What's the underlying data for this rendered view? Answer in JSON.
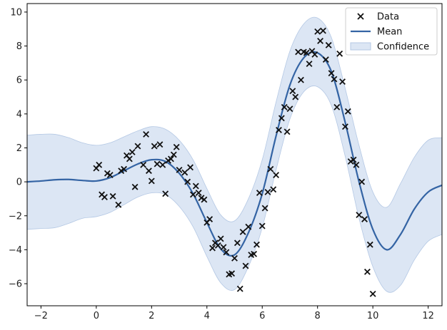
{
  "chart_data": {
    "type": "scatter",
    "title": "",
    "xlabel": "",
    "ylabel": "",
    "xlim": [
      -2.5,
      12.5
    ],
    "ylim": [
      -7.3,
      10.5
    ],
    "xticks": [
      -2,
      0,
      2,
      4,
      6,
      8,
      10,
      12
    ],
    "yticks": [
      -6,
      -4,
      -2,
      0,
      2,
      4,
      6,
      8,
      10
    ],
    "grid": false,
    "legend": {
      "position": "top-right",
      "entries": [
        "Data",
        "Mean",
        "Confidence"
      ]
    },
    "colors": {
      "data": "#111111",
      "mean": "#3464a4",
      "confidence": "#dce6f4",
      "confidence_edge": "#b4c8e4"
    },
    "series": [
      {
        "name": "Data",
        "type": "scatter",
        "marker": "x",
        "x": [
          0.0,
          0.1,
          0.2,
          0.3,
          0.4,
          0.5,
          0.6,
          0.8,
          0.9,
          1.0,
          1.1,
          1.2,
          1.3,
          1.4,
          1.5,
          1.7,
          1.8,
          1.9,
          2.0,
          2.1,
          2.2,
          2.3,
          2.4,
          2.5,
          2.6,
          2.7,
          2.8,
          2.9,
          3.0,
          3.2,
          3.3,
          3.4,
          3.5,
          3.6,
          3.7,
          3.8,
          3.9,
          4.0,
          4.1,
          4.2,
          4.3,
          4.4,
          4.5,
          4.6,
          4.7,
          4.8,
          4.9,
          5.0,
          5.1,
          5.2,
          5.3,
          5.4,
          5.5,
          5.6,
          5.7,
          5.8,
          5.9,
          6.0,
          6.1,
          6.2,
          6.3,
          6.4,
          6.5,
          6.6,
          6.7,
          6.8,
          6.9,
          7.0,
          7.1,
          7.2,
          7.3,
          7.4,
          7.5,
          7.6,
          7.7,
          7.8,
          7.9,
          8.0,
          8.1,
          8.2,
          8.3,
          8.4,
          8.5,
          8.6,
          8.7,
          8.8,
          8.9,
          9.0,
          9.1,
          9.2,
          9.3,
          9.4,
          9.5,
          9.6,
          9.7,
          9.8,
          9.9,
          10.0
        ],
        "y": [
          0.8,
          1.0,
          -0.75,
          -0.9,
          0.5,
          0.4,
          -0.85,
          -1.35,
          0.65,
          0.75,
          1.55,
          1.35,
          1.75,
          -0.3,
          2.1,
          1.0,
          2.8,
          0.65,
          0.05,
          2.1,
          1.05,
          2.2,
          1.0,
          -0.7,
          1.25,
          1.35,
          1.6,
          2.05,
          0.7,
          0.55,
          0.0,
          0.85,
          -0.75,
          -0.25,
          -0.65,
          -0.95,
          -1.05,
          -2.4,
          -2.2,
          -3.9,
          -3.6,
          -3.75,
          -3.35,
          -3.85,
          -4.15,
          -5.45,
          -5.4,
          -4.5,
          -3.6,
          -6.3,
          -2.95,
          -4.95,
          -2.65,
          -4.3,
          -4.25,
          -3.7,
          -0.65,
          -2.6,
          -1.55,
          -0.6,
          0.75,
          -0.45,
          0.4,
          3.05,
          3.75,
          4.4,
          2.95,
          4.3,
          5.35,
          5.0,
          7.65,
          6.0,
          7.65,
          7.6,
          6.95,
          7.7,
          7.5,
          8.85,
          8.3,
          8.9,
          7.2,
          8.05,
          6.4,
          6.05,
          4.4,
          7.55,
          5.9,
          3.25,
          4.15,
          1.2,
          1.3,
          1.0,
          -1.95,
          0.0,
          -2.2,
          -5.3,
          -3.7,
          -6.6
        ]
      },
      {
        "name": "Mean",
        "type": "line",
        "x": [
          -2.5,
          -2.0,
          -1.5,
          -1.0,
          -0.5,
          0.0,
          0.5,
          1.0,
          1.5,
          2.0,
          2.5,
          3.0,
          3.5,
          4.0,
          4.5,
          5.0,
          5.5,
          6.0,
          6.5,
          7.0,
          7.5,
          8.0,
          8.5,
          9.0,
          9.5,
          10.0,
          10.5,
          11.0,
          11.5,
          12.0,
          12.5
        ],
        "y": [
          0.0,
          0.05,
          0.12,
          0.14,
          0.08,
          0.05,
          0.25,
          0.65,
          1.05,
          1.3,
          1.2,
          0.5,
          -0.7,
          -2.4,
          -3.95,
          -4.3,
          -3.0,
          -0.7,
          2.7,
          5.7,
          7.3,
          7.6,
          6.5,
          3.5,
          0.0,
          -2.8,
          -4.0,
          -3.1,
          -1.6,
          -0.6,
          -0.2
        ]
      },
      {
        "name": "Confidence",
        "type": "band",
        "x": [
          -2.5,
          -2.0,
          -1.5,
          -1.0,
          -0.5,
          0.0,
          0.5,
          1.0,
          1.5,
          2.0,
          2.5,
          3.0,
          3.5,
          4.0,
          4.5,
          5.0,
          5.5,
          6.0,
          6.5,
          7.0,
          7.5,
          8.0,
          8.5,
          9.0,
          9.5,
          10.0,
          10.5,
          11.0,
          11.5,
          12.0,
          12.5
        ],
        "upper": [
          2.75,
          2.8,
          2.8,
          2.6,
          2.3,
          2.15,
          2.3,
          2.65,
          3.0,
          3.25,
          3.1,
          2.45,
          1.3,
          -0.4,
          -1.95,
          -2.3,
          -1.0,
          1.3,
          4.7,
          7.7,
          9.3,
          9.65,
          8.5,
          5.5,
          2.15,
          -0.6,
          -1.5,
          -0.1,
          1.45,
          2.45,
          2.6
        ],
        "lower": [
          -2.8,
          -2.75,
          -2.7,
          -2.45,
          -2.15,
          -2.05,
          -1.8,
          -1.35,
          -0.9,
          -0.65,
          -0.75,
          -1.45,
          -2.65,
          -4.4,
          -5.95,
          -6.35,
          -5.0,
          -2.7,
          0.7,
          3.7,
          5.3,
          5.6,
          4.5,
          1.5,
          -2.15,
          -5.0,
          -6.45,
          -6.1,
          -4.6,
          -3.5,
          -3.1
        ]
      }
    ]
  }
}
